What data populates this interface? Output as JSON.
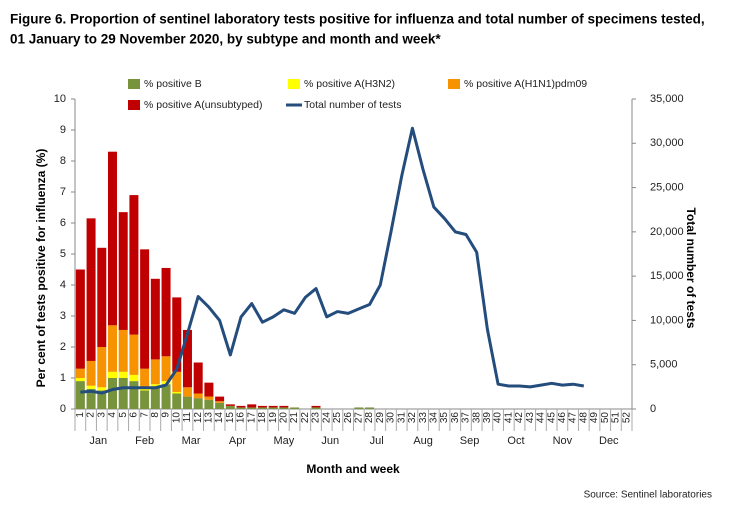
{
  "chart_data": {
    "type": "bar_line",
    "title": [
      "Figure 6. Proportion of sentinel laboratory tests positive for influenza and total number of specimens tested,",
      "01 January to 29 November 2020, by subtype and month and week*"
    ],
    "x_label": "Month and week",
    "y_label": "Per cent of tests positive for influenza (%)",
    "y2_label": "Total number of tests",
    "source": "Source: Sentinel laboratories",
    "months": [
      "Jan",
      "Feb",
      "Mar",
      "Apr",
      "May",
      "Jun",
      "Jul",
      "Aug",
      "Sep",
      "Oct",
      "Nov",
      "Dec"
    ],
    "categories": [
      "1",
      "2",
      "3",
      "4",
      "5",
      "6",
      "7",
      "8",
      "9",
      "10",
      "11",
      "12",
      "13",
      "14",
      "15",
      "16",
      "17",
      "18",
      "19",
      "20",
      "21",
      "22",
      "23",
      "24",
      "25",
      "26",
      "27",
      "28",
      "29",
      "30",
      "31",
      "32",
      "33",
      "34",
      "35",
      "36",
      "37",
      "38",
      "39",
      "40",
      "41",
      "42",
      "43",
      "44",
      "45",
      "46",
      "47",
      "48",
      "49",
      "50",
      "51",
      "52"
    ],
    "series": [
      {
        "name": "% positive B",
        "color": "#77933c",
        "type": "bar",
        "values": [
          0.9,
          0.65,
          0.6,
          1.0,
          1.0,
          0.9,
          0.6,
          0.7,
          0.8,
          0.5,
          0.4,
          0.35,
          0.3,
          0.2,
          0.1,
          0.05,
          0.05,
          0.05,
          0.05,
          0.05,
          0.05,
          0,
          0.05,
          0,
          0,
          0,
          0.05,
          0.05,
          0,
          0,
          0,
          0,
          0,
          0,
          0,
          0,
          0,
          0,
          0,
          0,
          0,
          0,
          0,
          0,
          0,
          0,
          0,
          0,
          0,
          0,
          0,
          0
        ]
      },
      {
        "name": "% positive A(H3N2)",
        "color": "#ffff00",
        "type": "bar",
        "values": [
          0.1,
          0.1,
          0.1,
          0.2,
          0.2,
          0.2,
          0.1,
          0.1,
          0.1,
          0.05,
          0,
          0,
          0,
          0,
          0,
          0,
          0,
          0,
          0,
          0,
          0,
          0,
          0,
          0,
          0,
          0,
          0,
          0,
          0,
          0,
          0,
          0,
          0,
          0,
          0,
          0,
          0,
          0,
          0,
          0,
          0,
          0,
          0,
          0,
          0,
          0,
          0,
          0,
          0,
          0,
          0,
          0
        ]
      },
      {
        "name": "% positive A(H1N1)pdm09",
        "color": "#f79200",
        "type": "bar",
        "values": [
          0.3,
          0.8,
          1.3,
          1.5,
          1.35,
          1.3,
          0.6,
          0.8,
          0.8,
          0.65,
          0.3,
          0.15,
          0.1,
          0.05,
          0,
          0,
          0,
          0,
          0,
          0,
          0,
          0,
          0,
          0,
          0,
          0,
          0,
          0,
          0,
          0,
          0,
          0,
          0,
          0,
          0,
          0,
          0,
          0,
          0,
          0,
          0,
          0,
          0,
          0,
          0,
          0,
          0,
          0,
          0,
          0,
          0,
          0
        ]
      },
      {
        "name": "% positive A(unsubtyped)",
        "color": "#c00000",
        "type": "bar",
        "values": [
          3.2,
          4.6,
          3.2,
          5.6,
          3.8,
          4.5,
          3.85,
          2.6,
          2.85,
          2.4,
          1.85,
          1.0,
          0.45,
          0.15,
          0.05,
          0.05,
          0.1,
          0.05,
          0.05,
          0.05,
          0,
          0,
          0.05,
          0,
          0,
          0,
          0,
          0,
          0,
          0,
          0,
          0,
          0,
          0,
          0,
          0,
          0,
          0,
          0,
          0,
          0,
          0,
          0,
          0,
          0,
          0,
          0,
          0,
          0,
          0,
          0,
          0
        ]
      },
      {
        "name": "Total number of tests",
        "color": "#244c7c",
        "type": "line",
        "axis": "y2",
        "values": [
          1900,
          2000,
          1800,
          2200,
          2400,
          2400,
          2400,
          2400,
          2700,
          4500,
          8500,
          12700,
          11500,
          10000,
          6100,
          10400,
          11900,
          9800,
          10400,
          11200,
          10800,
          12600,
          13600,
          10400,
          11000,
          10800,
          11300,
          11800,
          14000,
          20000,
          26300,
          31700,
          27000,
          22800,
          21500,
          20000,
          19700,
          17700,
          9000,
          2800,
          2600,
          2600,
          2500,
          2700,
          2900,
          2700,
          2800,
          2600,
          null,
          null,
          null,
          null
        ]
      }
    ],
    "ylim": [
      0,
      10
    ],
    "yticks": [
      0,
      1,
      2,
      3,
      4,
      5,
      6,
      7,
      8,
      9,
      10
    ],
    "y2lim": [
      0,
      35000
    ],
    "y2ticks": [
      0,
      {
        "value": 5000,
        "label": "5,000"
      },
      {
        "value": 10000,
        "label": "10,000"
      },
      {
        "value": 15000,
        "label": "15,000"
      },
      {
        "value": 20000,
        "label": "20,000"
      },
      {
        "value": 25000,
        "label": "25,000"
      },
      {
        "value": 30000,
        "label": "30,000"
      },
      {
        "value": 35000,
        "label": "35,000"
      }
    ],
    "stacked": true,
    "grid": false
  }
}
